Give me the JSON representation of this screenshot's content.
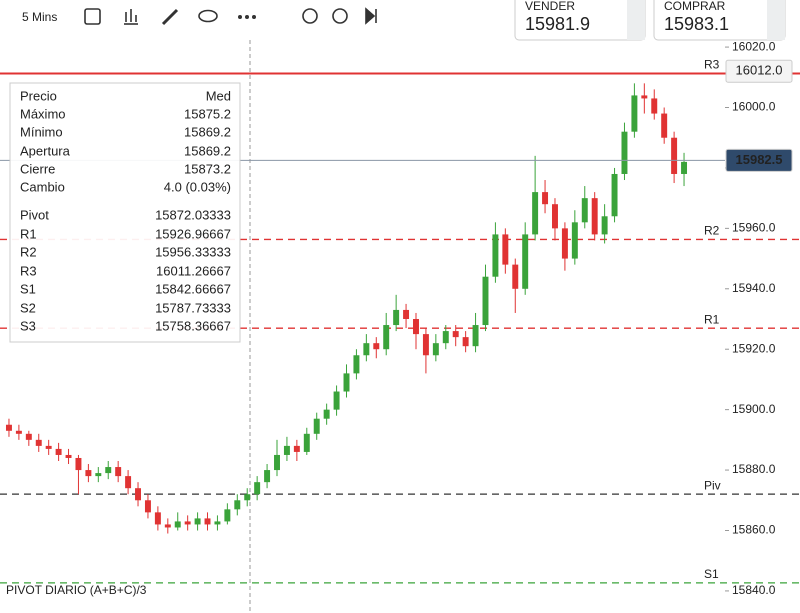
{
  "toolbar": {
    "interval": "5 Mins"
  },
  "quote": {
    "sell_label": "VENDER",
    "sell_price": "15981.9",
    "buy_label": "COMPRAR",
    "buy_price": "15983.1"
  },
  "info_panel": {
    "rows": [
      {
        "label": "Precio",
        "value": "Med",
        "color": "#222"
      },
      {
        "label": "Máximo",
        "value": "15875.2",
        "color": "#222"
      },
      {
        "label": "Mínimo",
        "value": "15869.2",
        "color": "#222"
      },
      {
        "label": "Apertura",
        "value": "15869.2",
        "color": "#222"
      },
      {
        "label": "Cierre",
        "value": "15873.2",
        "color": "#3aa33a"
      },
      {
        "label": "Cambio",
        "value": "4.0 (0.03%)",
        "color": "#3aa33a"
      },
      {
        "label": "Pivot",
        "value": "15872.03333",
        "color": "#222"
      },
      {
        "label": "R1",
        "value": "15926.96667",
        "color": "#e03333"
      },
      {
        "label": "R2",
        "value": "15956.33333",
        "color": "#e03333"
      },
      {
        "label": "R3",
        "value": "16011.26667",
        "color": "#e03333"
      },
      {
        "label": "S1",
        "value": "15842.66667",
        "color": "#3aa33a"
      },
      {
        "label": "S2",
        "value": "15787.73333",
        "color": "#3aa33a"
      },
      {
        "label": "S3",
        "value": "15758.36667",
        "color": "#3aa33a"
      }
    ]
  },
  "chart_data": {
    "type": "candlestick",
    "indicator_label": "PIVOT DIARIO (A+B+C)/3",
    "up_color": "#3aa33a",
    "down_color": "#e03333",
    "ylim": [
      15836,
      16024
    ],
    "yticks": [
      {
        "value": 15840,
        "label": "15840.0"
      },
      {
        "value": 15860,
        "label": "15860.0"
      },
      {
        "value": 15880,
        "label": "15880.0"
      },
      {
        "value": 15900,
        "label": "15900.0"
      },
      {
        "value": 15920,
        "label": "15920.0"
      },
      {
        "value": 15940,
        "label": "15940.0"
      },
      {
        "value": 15960,
        "label": "15960.0"
      },
      {
        "value": 15980,
        "label": "15980.0"
      },
      {
        "value": 16000,
        "label": "16000.0"
      },
      {
        "value": 16020,
        "label": "16020.0"
      }
    ],
    "levels": [
      {
        "name": "R3",
        "value": 16011.26667,
        "color": "#e03333",
        "style": "solid"
      },
      {
        "name": "R2",
        "value": 15956.33333,
        "color": "#e03333",
        "style": "dashed"
      },
      {
        "name": "R1",
        "value": 15926.96667,
        "color": "#e03333",
        "style": "dashed"
      },
      {
        "name": "Piv",
        "value": 15872.03333,
        "color": "#333333",
        "style": "dashed"
      },
      {
        "name": "S1",
        "value": 15842.66667,
        "color": "#3aa33a",
        "style": "dashed"
      }
    ],
    "price_tags": [
      {
        "value": 16012.0,
        "label": "16012.0",
        "bg": "#f4f4f4",
        "fg": "#222222",
        "line": null
      },
      {
        "value": 15982.5,
        "label": "15982.5",
        "bg": "#2f4a6b",
        "fg": "#ffffff",
        "line": "#8a96a6"
      }
    ],
    "candles": [
      [
        15895,
        15897,
        15891,
        15893
      ],
      [
        15893,
        15895,
        15890,
        15892
      ],
      [
        15892,
        15893,
        15888,
        15890
      ],
      [
        15890,
        15892,
        15886,
        15888
      ],
      [
        15888,
        15890,
        15885,
        15887
      ],
      [
        15887,
        15889,
        15883,
        15885
      ],
      [
        15885,
        15887,
        15882,
        15884
      ],
      [
        15884,
        15885,
        15872,
        15880
      ],
      [
        15880,
        15882,
        15876,
        15878
      ],
      [
        15878,
        15881,
        15876,
        15879
      ],
      [
        15879,
        15883,
        15877,
        15881
      ],
      [
        15881,
        15883,
        15876,
        15878
      ],
      [
        15878,
        15880,
        15872,
        15874
      ],
      [
        15874,
        15876,
        15868,
        15870
      ],
      [
        15870,
        15872,
        15864,
        15866
      ],
      [
        15866,
        15868,
        15860,
        15862
      ],
      [
        15862,
        15864,
        15859,
        15861
      ],
      [
        15861,
        15866,
        15860,
        15863
      ],
      [
        15863,
        15865,
        15860,
        15862
      ],
      [
        15862,
        15866,
        15860,
        15864
      ],
      [
        15864,
        15866,
        15860,
        15862
      ],
      [
        15862,
        15865,
        15860,
        15863
      ],
      [
        15863,
        15869,
        15862,
        15867
      ],
      [
        15867,
        15872,
        15865,
        15870
      ],
      [
        15870,
        15874,
        15868,
        15872
      ],
      [
        15872,
        15878,
        15870,
        15876
      ],
      [
        15876,
        15882,
        15874,
        15880
      ],
      [
        15880,
        15890,
        15878,
        15885
      ],
      [
        15885,
        15891,
        15883,
        15888
      ],
      [
        15888,
        15890,
        15883,
        15886
      ],
      [
        15886,
        15894,
        15885,
        15892
      ],
      [
        15892,
        15899,
        15890,
        15897
      ],
      [
        15897,
        15902,
        15895,
        15900
      ],
      [
        15900,
        15908,
        15898,
        15906
      ],
      [
        15906,
        15915,
        15904,
        15912
      ],
      [
        15912,
        15920,
        15910,
        15918
      ],
      [
        15918,
        15925,
        15916,
        15922
      ],
      [
        15922,
        15924,
        15917,
        15920
      ],
      [
        15920,
        15932,
        15918,
        15928
      ],
      [
        15928,
        15938,
        15926,
        15933
      ],
      [
        15933,
        15935,
        15927,
        15930
      ],
      [
        15930,
        15932,
        15920,
        15925
      ],
      [
        15925,
        15927,
        15912,
        15918
      ],
      [
        15918,
        15925,
        15916,
        15922
      ],
      [
        15922,
        15928,
        15920,
        15926
      ],
      [
        15926,
        15928,
        15921,
        15924
      ],
      [
        15924,
        15926,
        15919,
        15921
      ],
      [
        15921,
        15932,
        15919,
        15928
      ],
      [
        15928,
        15948,
        15926,
        15944
      ],
      [
        15944,
        15962,
        15942,
        15958
      ],
      [
        15958,
        15960,
        15945,
        15948
      ],
      [
        15948,
        15950,
        15932,
        15940
      ],
      [
        15940,
        15962,
        15938,
        15958
      ],
      [
        15958,
        15984,
        15956,
        15972
      ],
      [
        15972,
        15976,
        15965,
        15968
      ],
      [
        15968,
        15970,
        15956,
        15960
      ],
      [
        15960,
        15962,
        15946,
        15950
      ],
      [
        15950,
        15966,
        15948,
        15962
      ],
      [
        15962,
        15974,
        15960,
        15970
      ],
      [
        15970,
        15972,
        15956,
        15958
      ],
      [
        15958,
        15968,
        15955,
        15964
      ],
      [
        15964,
        15980,
        15962,
        15978
      ],
      [
        15978,
        15995,
        15976,
        15992
      ],
      [
        15992,
        16008,
        15990,
        16004
      ],
      [
        16004,
        16008,
        15998,
        16003
      ],
      [
        16003,
        16006,
        15996,
        15998
      ],
      [
        15998,
        16000,
        15988,
        15990
      ],
      [
        15990,
        15992,
        15975,
        15978
      ],
      [
        15978,
        15985,
        15974,
        15982
      ]
    ]
  }
}
